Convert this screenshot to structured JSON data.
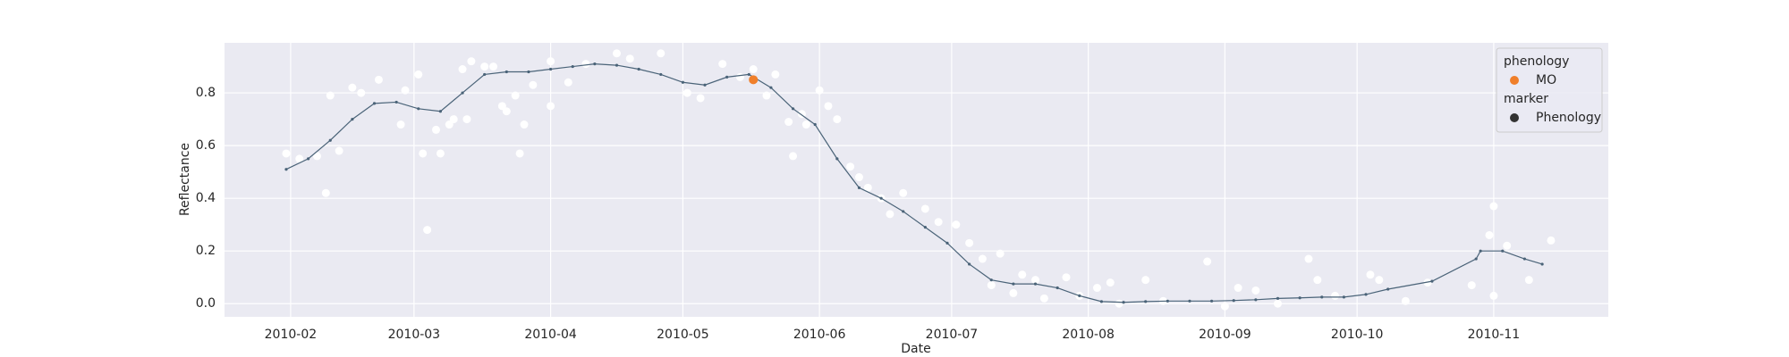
{
  "chart_data": {
    "type": "line",
    "xlabel": "Date",
    "ylabel": "Reflectance",
    "xlim": [
      "2010-01-17",
      "2010-11-27"
    ],
    "ylim": [
      -0.05,
      0.99
    ],
    "xticks": [
      {
        "value": "2010-02-01",
        "label": "2010-02"
      },
      {
        "value": "2010-03-01",
        "label": "2010-03"
      },
      {
        "value": "2010-04-01",
        "label": "2010-04"
      },
      {
        "value": "2010-05-01",
        "label": "2010-05"
      },
      {
        "value": "2010-06-01",
        "label": "2010-06"
      },
      {
        "value": "2010-07-01",
        "label": "2010-07"
      },
      {
        "value": "2010-08-01",
        "label": "2010-08"
      },
      {
        "value": "2010-09-01",
        "label": "2010-09"
      },
      {
        "value": "2010-10-01",
        "label": "2010-10"
      },
      {
        "value": "2010-11-01",
        "label": "2010-11"
      }
    ],
    "yticks": [
      {
        "value": 0,
        "label": "0.0"
      },
      {
        "value": 0.2,
        "label": "0.2"
      },
      {
        "value": 0.4,
        "label": "0.4"
      },
      {
        "value": 0.6,
        "label": "0.6"
      },
      {
        "value": 0.8,
        "label": "0.8"
      }
    ],
    "grid": true,
    "legend_position": "upper right",
    "legend": [
      {
        "title": "phenology",
        "entries": [
          {
            "label": "MO",
            "color": "#f07f2a"
          }
        ]
      },
      {
        "title": "marker",
        "entries": [
          {
            "label": "Phenology",
            "color": "#333333"
          }
        ]
      }
    ],
    "series": [
      {
        "kind": "scatter",
        "color": "#ffffff",
        "x": [
          "2010-01-31",
          "2010-02-03",
          "2010-02-07",
          "2010-02-09",
          "2010-02-10",
          "2010-02-12",
          "2010-02-15",
          "2010-02-17",
          "2010-02-21",
          "2010-02-26",
          "2010-02-27",
          "2010-03-02",
          "2010-03-03",
          "2010-03-04",
          "2010-03-06",
          "2010-03-07",
          "2010-03-09",
          "2010-03-10",
          "2010-03-12",
          "2010-03-13",
          "2010-03-14",
          "2010-03-17",
          "2010-03-19",
          "2010-03-21",
          "2010-03-22",
          "2010-03-24",
          "2010-03-25",
          "2010-03-26",
          "2010-03-28",
          "2010-04-01",
          "2010-04-01",
          "2010-04-05",
          "2010-04-09",
          "2010-04-16",
          "2010-04-19",
          "2010-04-26",
          "2010-05-02",
          "2010-05-05",
          "2010-05-10",
          "2010-05-14",
          "2010-05-17",
          "2010-05-20",
          "2010-05-22",
          "2010-05-25",
          "2010-05-26",
          "2010-05-28",
          "2010-05-29",
          "2010-06-01",
          "2010-06-03",
          "2010-06-05",
          "2010-06-08",
          "2010-06-10",
          "2010-06-12",
          "2010-06-15",
          "2010-06-17",
          "2010-06-20",
          "2010-06-25",
          "2010-06-28",
          "2010-07-02",
          "2010-07-05",
          "2010-07-08",
          "2010-07-10",
          "2010-07-12",
          "2010-07-15",
          "2010-07-17",
          "2010-07-20",
          "2010-07-22",
          "2010-07-27",
          "2010-07-30",
          "2010-08-03",
          "2010-08-06",
          "2010-08-08",
          "2010-08-14",
          "2010-08-18",
          "2010-08-28",
          "2010-09-01",
          "2010-09-04",
          "2010-09-08",
          "2010-09-13",
          "2010-09-20",
          "2010-09-22",
          "2010-09-26",
          "2010-10-04",
          "2010-10-06",
          "2010-10-12",
          "2010-10-17",
          "2010-10-27",
          "2010-10-31",
          "2010-11-01",
          "2010-11-01",
          "2010-11-04",
          "2010-11-09",
          "2010-11-14"
        ],
        "values": [
          0.57,
          0.55,
          0.56,
          0.42,
          0.79,
          0.58,
          0.82,
          0.8,
          0.85,
          0.68,
          0.81,
          0.87,
          0.57,
          0.28,
          0.66,
          0.57,
          0.68,
          0.7,
          0.89,
          0.7,
          0.92,
          0.9,
          0.9,
          0.75,
          0.73,
          0.79,
          0.57,
          0.68,
          0.83,
          0.92,
          0.75,
          0.84,
          0.91,
          0.95,
          0.93,
          0.95,
          0.8,
          0.78,
          0.91,
          0.86,
          0.89,
          0.79,
          0.87,
          0.69,
          0.56,
          0.72,
          0.68,
          0.81,
          0.75,
          0.7,
          0.52,
          0.48,
          0.44,
          0.4,
          0.34,
          0.42,
          0.36,
          0.31,
          0.3,
          0.23,
          0.17,
          0.07,
          0.19,
          0.04,
          0.11,
          0.09,
          0.02,
          0.1,
          0.03,
          0.06,
          0.08,
          0,
          0.09,
          0.01,
          0.16,
          -0.01,
          0.06,
          0.05,
          0,
          0.17,
          0.09,
          0.03,
          0.11,
          0.09,
          0.01,
          0.08,
          0.07,
          0.26,
          0.03,
          0.37,
          0.22,
          0.09,
          0.24
        ]
      },
      {
        "kind": "line",
        "color": "#4a6378",
        "x": [
          "2010-01-31",
          "2010-02-05",
          "2010-02-10",
          "2010-02-15",
          "2010-02-20",
          "2010-02-25",
          "2010-03-02",
          "2010-03-07",
          "2010-03-12",
          "2010-03-17",
          "2010-03-22",
          "2010-03-27",
          "2010-04-01",
          "2010-04-06",
          "2010-04-11",
          "2010-04-16",
          "2010-04-21",
          "2010-04-26",
          "2010-05-01",
          "2010-05-06",
          "2010-05-11",
          "2010-05-16",
          "2010-05-21",
          "2010-05-26",
          "2010-05-31",
          "2010-06-05",
          "2010-06-10",
          "2010-06-15",
          "2010-06-20",
          "2010-06-25",
          "2010-06-30",
          "2010-07-05",
          "2010-07-10",
          "2010-07-15",
          "2010-07-20",
          "2010-07-25",
          "2010-07-30",
          "2010-08-04",
          "2010-08-09",
          "2010-08-14",
          "2010-08-19",
          "2010-08-24",
          "2010-08-29",
          "2010-09-03",
          "2010-09-08",
          "2010-09-13",
          "2010-09-18",
          "2010-09-23",
          "2010-09-28",
          "2010-10-03",
          "2010-10-08",
          "2010-10-18",
          "2010-10-28",
          "2010-10-29",
          "2010-11-03",
          "2010-11-08",
          "2010-11-12"
        ],
        "values": [
          0.51,
          0.55,
          0.62,
          0.7,
          0.76,
          0.765,
          0.74,
          0.73,
          0.8,
          0.87,
          0.88,
          0.88,
          0.89,
          0.9,
          0.91,
          0.905,
          0.89,
          0.87,
          0.84,
          0.83,
          0.86,
          0.87,
          0.82,
          0.74,
          0.68,
          0.55,
          0.44,
          0.4,
          0.35,
          0.29,
          0.23,
          0.15,
          0.09,
          0.075,
          0.075,
          0.06,
          0.03,
          0.008,
          0.005,
          0.008,
          0.01,
          0.01,
          0.01,
          0.012,
          0.015,
          0.02,
          0.022,
          0.025,
          0.025,
          0.035,
          0.055,
          0.085,
          0.17,
          0.2,
          0.2,
          0.17,
          0.15
        ]
      },
      {
        "kind": "scatter",
        "color": "#f07f2a",
        "x": [
          "2010-05-17"
        ],
        "values": [
          0.85
        ]
      }
    ]
  }
}
